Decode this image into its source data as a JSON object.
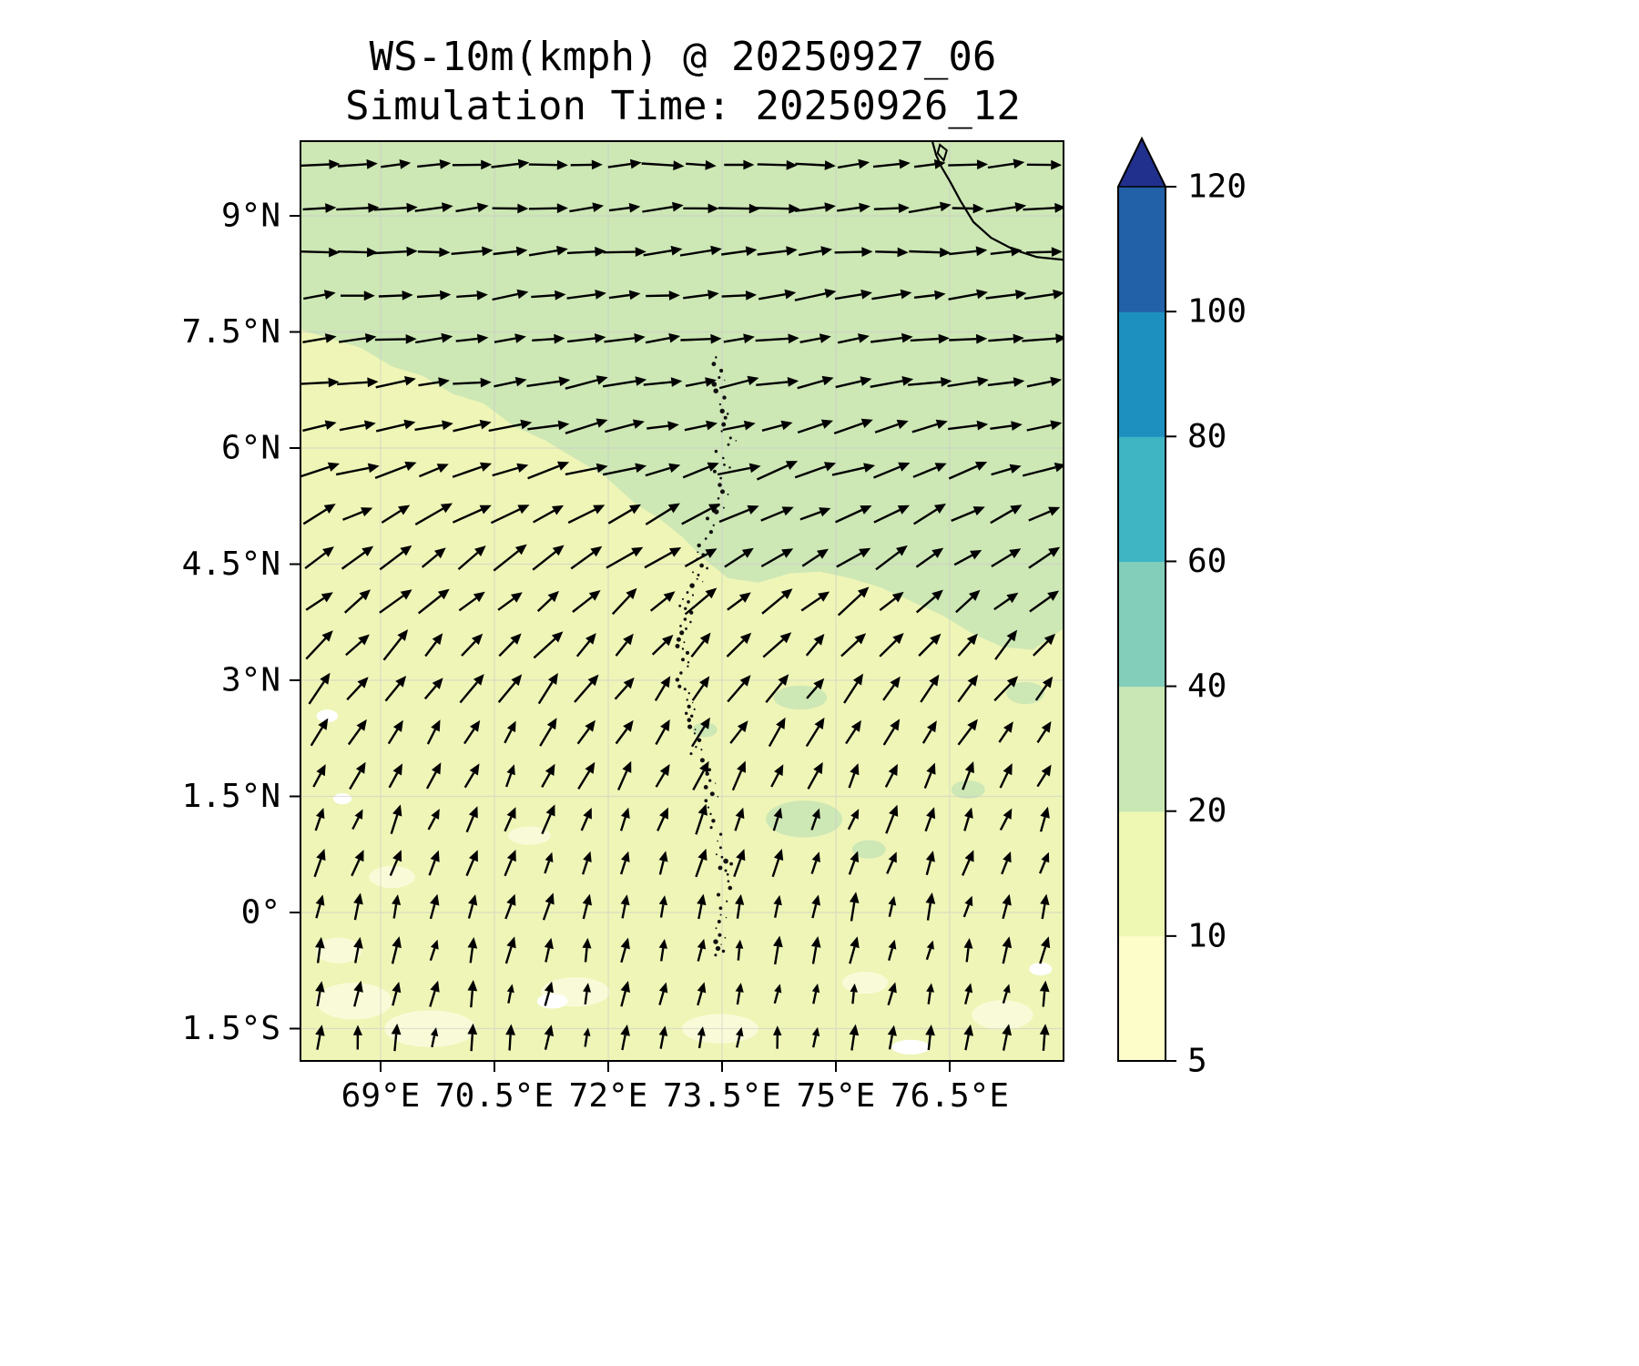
{
  "chart_data": {
    "type": "heatmap",
    "subtype": "wind_quiver_over_filled_contours",
    "title": "WS-10m(kmph) @ 20250927_06",
    "subtitle": "Simulation Time: 20250926_12",
    "variable": "WS-10m",
    "units": "kmph",
    "valid_time": "20250927_06",
    "simulation_time": "20250926_12",
    "xlabel": "",
    "ylabel": "",
    "x_ticks": [
      "69°E",
      "70.5°E",
      "72°E",
      "73.5°E",
      "75°E",
      "76.5°E"
    ],
    "y_ticks": [
      "9°N",
      "7.5°N",
      "6°N",
      "4.5°N",
      "3°N",
      "1.5°N",
      "0°",
      "1.5°S"
    ],
    "grid": true,
    "legend_position": "right-colorbar",
    "colorbar": {
      "levels": [
        "5",
        "10",
        "20",
        "40",
        "60",
        "80",
        "100",
        "120"
      ],
      "band_colors": [
        "#fdfdca",
        "#eef8b3",
        "#c9e7b4",
        "#82cebb",
        "#3fb5c4",
        "#1d90c0",
        "#2260a8"
      ],
      "extend_color": "#21308c",
      "extend_max": true
    },
    "field": {
      "base_band": "10-20 kmph",
      "base_color": "#eef5b6",
      "upper_band": "20-40 kmph",
      "upper_color": "#cde7b5",
      "low_band": "5-10 kmph",
      "low_color": "#f9fbd8",
      "lowest_color": "#ffffff"
    },
    "quiver": {
      "cols": 20,
      "angle_jitter_deg": 7,
      "len_jitter_frac": 0.18,
      "rows": [
        {
          "angle": 3,
          "len": 40
        },
        {
          "angle": 4,
          "len": 42
        },
        {
          "angle": 4,
          "len": 42
        },
        {
          "angle": 6,
          "len": 42
        },
        {
          "angle": 7,
          "len": 42
        },
        {
          "angle": 9,
          "len": 42
        },
        {
          "angle": 13,
          "len": 42
        },
        {
          "angle": 18,
          "len": 42
        },
        {
          "angle": 26,
          "len": 41
        },
        {
          "angle": 34,
          "len": 40
        },
        {
          "angle": 40,
          "len": 39
        },
        {
          "angle": 47,
          "len": 37
        },
        {
          "angle": 53,
          "len": 35
        },
        {
          "angle": 58,
          "len": 33
        },
        {
          "angle": 64,
          "len": 31
        },
        {
          "angle": 68,
          "len": 30
        },
        {
          "angle": 72,
          "len": 29
        },
        {
          "angle": 75,
          "len": 28
        },
        {
          "angle": 78,
          "len": 27
        },
        {
          "angle": 80,
          "len": 26
        },
        {
          "angle": 83,
          "len": 26
        }
      ]
    },
    "map_features": {
      "upper_contour": [
        [
          0,
          0.205
        ],
        [
          0.04,
          0.215
        ],
        [
          0.08,
          0.225
        ],
        [
          0.12,
          0.245
        ],
        [
          0.16,
          0.255
        ],
        [
          0.2,
          0.275
        ],
        [
          0.24,
          0.285
        ],
        [
          0.28,
          0.31
        ],
        [
          0.32,
          0.325
        ],
        [
          0.36,
          0.345
        ],
        [
          0.4,
          0.365
        ],
        [
          0.44,
          0.395
        ],
        [
          0.47,
          0.41
        ],
        [
          0.5,
          0.43
        ],
        [
          0.53,
          0.455
        ],
        [
          0.56,
          0.475
        ],
        [
          0.6,
          0.48
        ],
        [
          0.64,
          0.47
        ],
        [
          0.68,
          0.468
        ],
        [
          0.72,
          0.475
        ],
        [
          0.76,
          0.485
        ],
        [
          0.8,
          0.5
        ],
        [
          0.84,
          0.515
        ],
        [
          0.88,
          0.535
        ],
        [
          0.92,
          0.55
        ],
        [
          0.96,
          0.553
        ],
        [
          1.0,
          0.53
        ]
      ],
      "green_patches": [
        [
          0.655,
          0.605,
          0.035,
          0.013
        ],
        [
          0.66,
          0.737,
          0.05,
          0.02
        ],
        [
          0.745,
          0.77,
          0.022,
          0.01
        ],
        [
          0.53,
          0.64,
          0.016,
          0.008
        ],
        [
          0.875,
          0.705,
          0.022,
          0.01
        ],
        [
          0.95,
          0.6,
          0.025,
          0.012
        ]
      ],
      "pale_patches": [
        [
          0.07,
          0.935,
          0.05,
          0.02
        ],
        [
          0.17,
          0.965,
          0.06,
          0.02
        ],
        [
          0.36,
          0.925,
          0.045,
          0.016
        ],
        [
          0.55,
          0.965,
          0.05,
          0.016
        ],
        [
          0.74,
          0.915,
          0.03,
          0.012
        ],
        [
          0.92,
          0.95,
          0.04,
          0.016
        ],
        [
          0.3,
          0.755,
          0.028,
          0.01
        ],
        [
          0.12,
          0.8,
          0.03,
          0.012
        ],
        [
          0.05,
          0.88,
          0.03,
          0.014
        ]
      ],
      "white_patches": [
        [
          0.035,
          0.625,
          0.014,
          0.007
        ],
        [
          0.055,
          0.715,
          0.012,
          0.006
        ],
        [
          0.33,
          0.935,
          0.02,
          0.008
        ],
        [
          0.8,
          0.985,
          0.025,
          0.008
        ],
        [
          0.97,
          0.9,
          0.015,
          0.007
        ]
      ],
      "coastline": [
        [
          0.828,
          0
        ],
        [
          0.833,
          0.015
        ],
        [
          0.84,
          0.028
        ],
        [
          0.852,
          0.045
        ],
        [
          0.865,
          0.065
        ],
        [
          0.882,
          0.088
        ],
        [
          0.905,
          0.105
        ],
        [
          0.935,
          0.118
        ],
        [
          0.965,
          0.126
        ],
        [
          1.0,
          0.129
        ]
      ],
      "islet": [
        [
          0.838,
          0.004
        ],
        [
          0.847,
          0.01
        ],
        [
          0.843,
          0.021
        ],
        [
          0.835,
          0.013
        ]
      ],
      "atolls": {
        "x": 0.527,
        "amp": 0.028,
        "y_start": 0.235,
        "y_end": 0.885,
        "count": 90
      }
    }
  }
}
